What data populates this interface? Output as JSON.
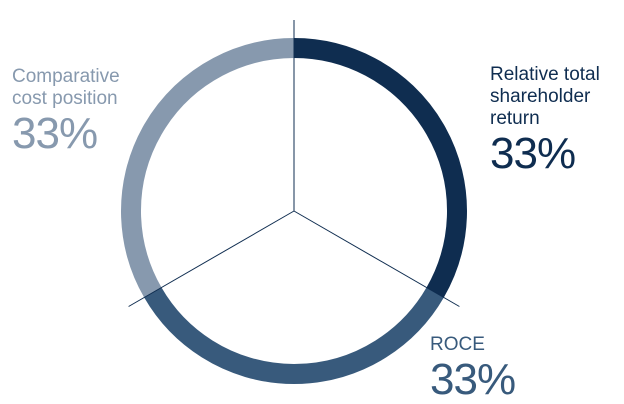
{
  "chart_data": {
    "type": "pie",
    "style": "donut-ring",
    "title": "",
    "slices": [
      {
        "label": "Relative total\nshareholder\nreturn",
        "value": 33,
        "display": "33%",
        "color": "#0f2d50"
      },
      {
        "label": "ROCE",
        "value": 33,
        "display": "33%",
        "color": "#385a7c"
      },
      {
        "label": "Comparative\ncost position",
        "value": 33,
        "display": "33%",
        "color": "#8799ae"
      }
    ],
    "divider_color": "#0f2d50",
    "legend": "none"
  }
}
